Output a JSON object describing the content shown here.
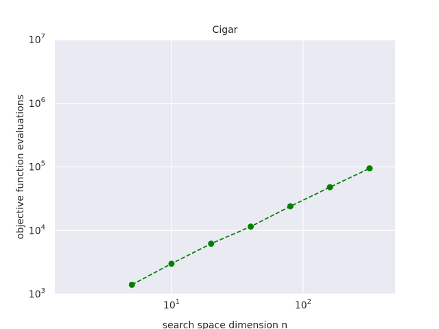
{
  "chart_data": {
    "type": "line",
    "title": "Cigar",
    "xlabel": "search space dimension n",
    "ylabel": "objective function evaluations",
    "xscale": "log",
    "yscale": "log",
    "xlim": [
      1.3,
      500
    ],
    "ylim": [
      1000,
      10000000
    ],
    "xticks": [
      {
        "base": "10",
        "exp": "1",
        "value": 10
      },
      {
        "base": "10",
        "exp": "2",
        "value": 100
      }
    ],
    "yticks": [
      {
        "base": "10",
        "exp": "3",
        "value": 1000
      },
      {
        "base": "10",
        "exp": "4",
        "value": 10000
      },
      {
        "base": "10",
        "exp": "5",
        "value": 100000
      },
      {
        "base": "10",
        "exp": "6",
        "value": 1000000
      },
      {
        "base": "10",
        "exp": "7",
        "value": 10000000
      }
    ],
    "grid": true,
    "background_color": "#eaeaf2",
    "grid_color": "#ffffff",
    "series": [
      {
        "color": "#008000",
        "line_style": "dashed",
        "marker": "circle",
        "x": [
          5,
          10,
          20,
          40,
          80,
          160,
          320
        ],
        "y": [
          1400,
          3000,
          6200,
          11500,
          24000,
          48000,
          95000
        ]
      }
    ]
  }
}
